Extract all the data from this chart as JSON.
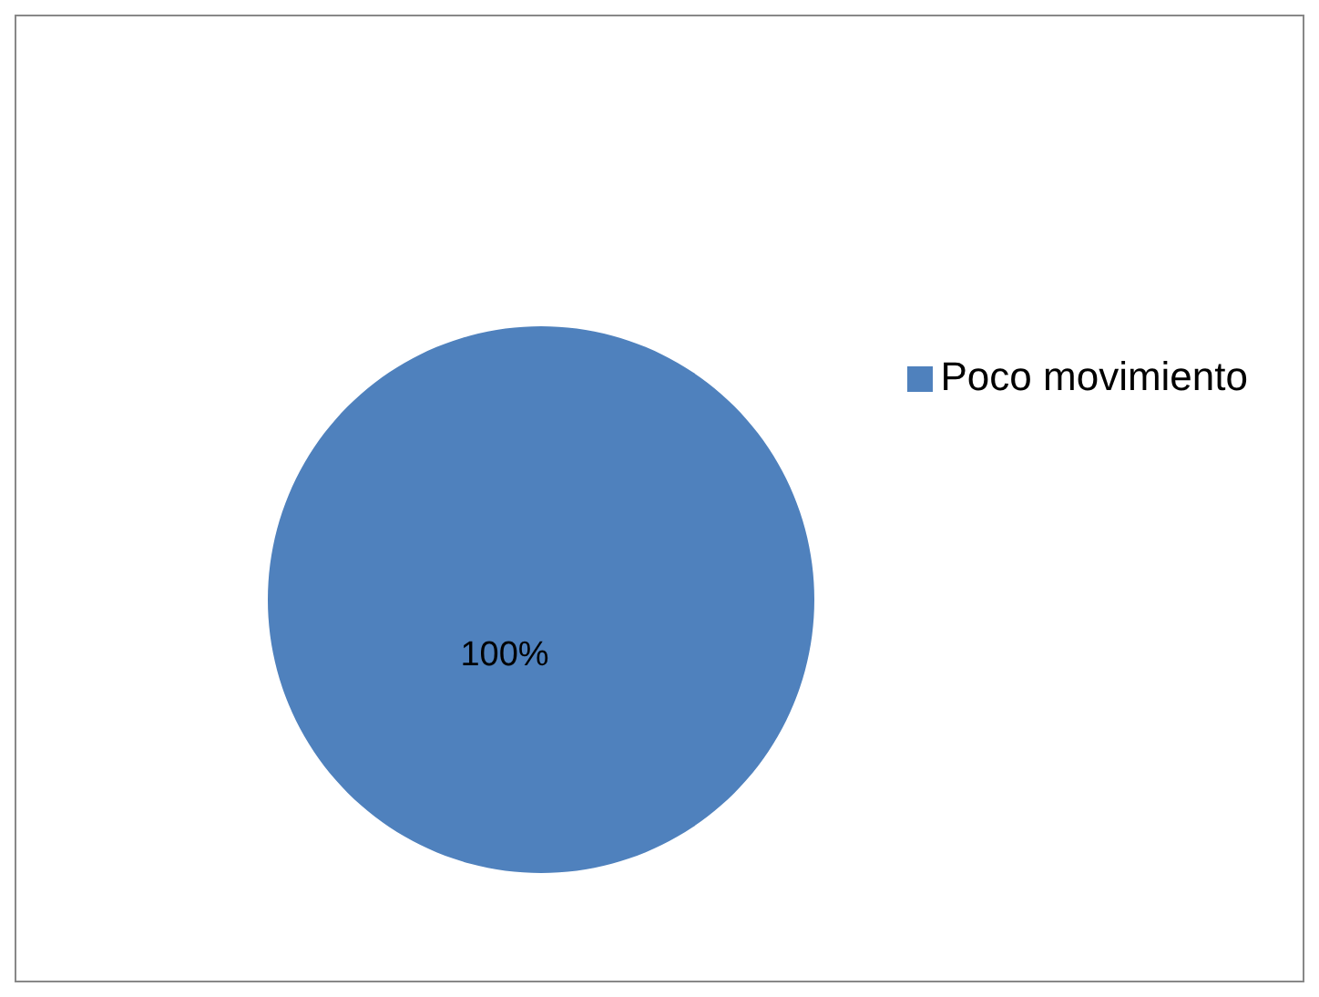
{
  "chart_data": {
    "type": "pie",
    "categories": [
      "Poco movimiento"
    ],
    "values": [
      100
    ],
    "colors": [
      "#4f81bd"
    ],
    "value_labels": [
      "100%"
    ],
    "legend": "right"
  }
}
